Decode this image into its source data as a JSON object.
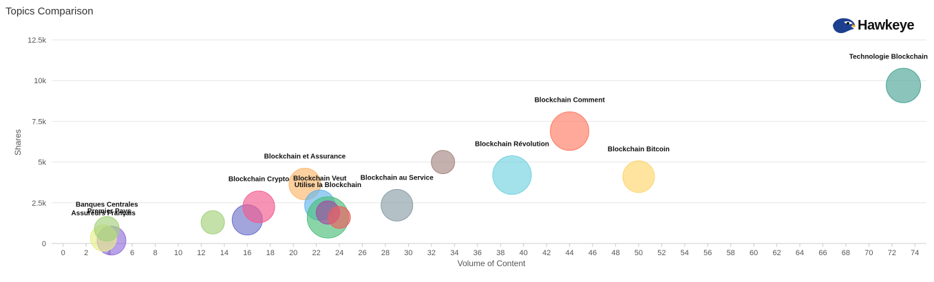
{
  "header": {
    "title": "Topics Comparison",
    "logo_text": "Hawkeye"
  },
  "chart_data": {
    "type": "scatter",
    "xlabel": "Volume of Content",
    "ylabel": "Shares",
    "xlim": [
      -1,
      75
    ],
    "ylim": [
      0,
      12500
    ],
    "xticks": [
      "0",
      "2",
      "4",
      "6",
      "8",
      "10",
      "12",
      "14",
      "16",
      "18",
      "20",
      "22",
      "24",
      "26",
      "28",
      "30",
      "32",
      "34",
      "36",
      "38",
      "40",
      "42",
      "44",
      "46",
      "48",
      "50",
      "52",
      "54",
      "56",
      "58",
      "60",
      "62",
      "64",
      "66",
      "68",
      "70",
      "72",
      "74"
    ],
    "yticks": [
      {
        "value": 0,
        "label": "0"
      },
      {
        "value": 2500,
        "label": "2.5k"
      },
      {
        "value": 5000,
        "label": "5k"
      },
      {
        "value": 7500,
        "label": "7.5k"
      },
      {
        "value": 10000,
        "label": "10k"
      },
      {
        "value": 12500,
        "label": "12.5k"
      }
    ],
    "grid": "y",
    "points": [
      {
        "x": 4.2,
        "y": 180,
        "r": 21,
        "color": "#9370db",
        "label": ""
      },
      {
        "x": 3.5,
        "y": 330,
        "r": 19,
        "color": "#e8ee8a",
        "label": "Assureurs Français"
      },
      {
        "x": 3.8,
        "y": 900,
        "r": 18,
        "color": "#a3d17b",
        "label": "Banques Centrales"
      },
      {
        "x": 4.0,
        "y": 1600,
        "r": 0,
        "color": "#a3d17b",
        "label": "Premier Pays"
      },
      {
        "x": 13,
        "y": 1300,
        "r": 17,
        "color": "#a3d17b",
        "label": ""
      },
      {
        "x": 16,
        "y": 1450,
        "r": 22,
        "color": "#6f74c9",
        "label": ""
      },
      {
        "x": 17,
        "y": 2250,
        "r": 23,
        "color": "#f25b8f",
        "label": "Blockchain Crypto"
      },
      {
        "x": 21,
        "y": 3650,
        "r": 23,
        "color": "#fbb76b",
        "label": "Blockchain et Assurance"
      },
      {
        "x": 22.3,
        "y": 2350,
        "r": 22,
        "color": "#64b5ee",
        "label": "Blockchain Veut"
      },
      {
        "x": 23,
        "y": 1600,
        "r": 30,
        "color": "#4cbf7a",
        "label": "Utilise la Blockchain"
      },
      {
        "x": 23.0,
        "y": 1900,
        "r": 17,
        "color": "#a34ba0",
        "label": ""
      },
      {
        "x": 24,
        "y": 1600,
        "r": 16,
        "color": "#ef5d5d",
        "label": ""
      },
      {
        "x": 29,
        "y": 2350,
        "r": 23,
        "color": "#8a9ea6",
        "label": "Blockchain au Service"
      },
      {
        "x": 33,
        "y": 5000,
        "r": 17,
        "color": "#a58680",
        "label": ""
      },
      {
        "x": 39,
        "y": 4200,
        "r": 28,
        "color": "#72d2e1",
        "label": "Blockchain Révolution"
      },
      {
        "x": 44,
        "y": 6900,
        "r": 28,
        "color": "#fd7b62",
        "label": "Blockchain Comment"
      },
      {
        "x": 50,
        "y": 4100,
        "r": 23,
        "color": "#fdd56b",
        "label": "Blockchain Bitcoin"
      },
      {
        "x": 73,
        "y": 9700,
        "r": 25,
        "color": "#4ba596",
        "label": "Technologie Blockchain"
      }
    ]
  }
}
